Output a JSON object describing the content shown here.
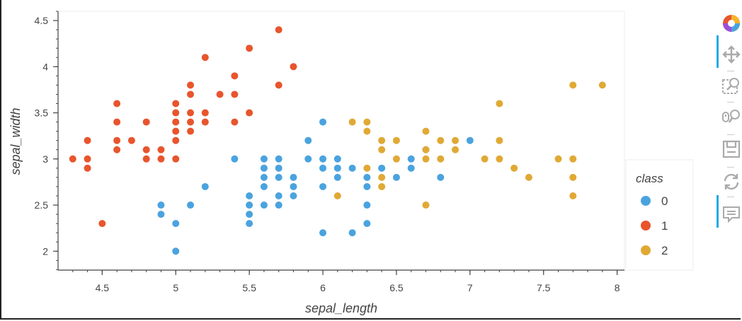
{
  "chart_data": {
    "type": "scatter",
    "title": "",
    "xlabel": "sepal_length",
    "ylabel": "sepal_width",
    "xlim": [
      4.2,
      8.05
    ],
    "ylim": [
      1.78,
      4.6
    ],
    "x_ticks": [
      "4.5",
      "5",
      "5.5",
      "6",
      "6.5",
      "7",
      "7.5",
      "8"
    ],
    "y_ticks": [
      "2",
      "2.5",
      "3",
      "3.5",
      "4",
      "4.5"
    ],
    "x_tick_values": [
      4.5,
      5,
      5.5,
      6,
      6.5,
      7,
      7.5,
      8
    ],
    "y_tick_values": [
      2,
      2.5,
      3,
      3.5,
      4,
      4.5
    ],
    "grid": false,
    "legend": {
      "title": "class",
      "placement": "right"
    },
    "series": [
      {
        "name": "0",
        "color": "#4aa3df",
        "points": [
          [
            4.9,
            2.5
          ],
          [
            4.9,
            2.4
          ],
          [
            5.0,
            2.3
          ],
          [
            5.0,
            2.0
          ],
          [
            5.1,
            2.5
          ],
          [
            5.2,
            2.7
          ],
          [
            5.4,
            3.0
          ],
          [
            5.5,
            2.6
          ],
          [
            5.5,
            2.5
          ],
          [
            5.5,
            2.4
          ],
          [
            5.5,
            2.3
          ],
          [
            5.6,
            3.0
          ],
          [
            5.6,
            2.9
          ],
          [
            5.6,
            2.8
          ],
          [
            5.6,
            2.7
          ],
          [
            5.6,
            2.5
          ],
          [
            5.7,
            3.0
          ],
          [
            5.7,
            2.9
          ],
          [
            5.7,
            2.8
          ],
          [
            5.7,
            2.6
          ],
          [
            5.7,
            2.5
          ],
          [
            5.8,
            2.8
          ],
          [
            5.8,
            2.7
          ],
          [
            5.8,
            2.6
          ],
          [
            5.9,
            3.2
          ],
          [
            5.9,
            3.0
          ],
          [
            6.0,
            3.4
          ],
          [
            6.0,
            3.0
          ],
          [
            6.0,
            2.9
          ],
          [
            6.0,
            2.7
          ],
          [
            6.0,
            2.2
          ],
          [
            6.1,
            3.0
          ],
          [
            6.1,
            2.9
          ],
          [
            6.1,
            2.8
          ],
          [
            6.2,
            2.9
          ],
          [
            6.2,
            2.2
          ],
          [
            6.3,
            2.8
          ],
          [
            6.3,
            2.7
          ],
          [
            6.3,
            2.5
          ],
          [
            6.3,
            2.3
          ],
          [
            6.4,
            2.9
          ],
          [
            6.5,
            2.8
          ],
          [
            6.6,
            3.0
          ],
          [
            6.6,
            2.9
          ],
          [
            6.7,
            3.1
          ],
          [
            6.8,
            2.8
          ],
          [
            7.0,
            3.2
          ]
        ]
      },
      {
        "name": "1",
        "color": "#e8552d",
        "points": [
          [
            4.3,
            3.0
          ],
          [
            4.4,
            3.2
          ],
          [
            4.4,
            3.0
          ],
          [
            4.4,
            2.9
          ],
          [
            4.5,
            2.3
          ],
          [
            4.6,
            3.6
          ],
          [
            4.6,
            3.4
          ],
          [
            4.6,
            3.2
          ],
          [
            4.6,
            3.1
          ],
          [
            4.7,
            3.2
          ],
          [
            4.8,
            3.4
          ],
          [
            4.8,
            3.1
          ],
          [
            4.8,
            3.0
          ],
          [
            4.9,
            3.1
          ],
          [
            4.9,
            3.0
          ],
          [
            5.0,
            3.6
          ],
          [
            5.0,
            3.5
          ],
          [
            5.0,
            3.4
          ],
          [
            5.0,
            3.3
          ],
          [
            5.0,
            3.2
          ],
          [
            5.0,
            3.0
          ],
          [
            5.1,
            3.8
          ],
          [
            5.1,
            3.7
          ],
          [
            5.1,
            3.5
          ],
          [
            5.1,
            3.4
          ],
          [
            5.1,
            3.3
          ],
          [
            5.2,
            4.1
          ],
          [
            5.2,
            3.5
          ],
          [
            5.2,
            3.4
          ],
          [
            5.3,
            3.7
          ],
          [
            5.4,
            3.9
          ],
          [
            5.4,
            3.7
          ],
          [
            5.4,
            3.4
          ],
          [
            5.5,
            4.2
          ],
          [
            5.5,
            3.5
          ],
          [
            5.7,
            4.4
          ],
          [
            5.7,
            3.8
          ],
          [
            5.8,
            4.0
          ]
        ]
      },
      {
        "name": "2",
        "color": "#e0a935",
        "points": [
          [
            6.1,
            2.6
          ],
          [
            6.2,
            3.4
          ],
          [
            6.3,
            3.4
          ],
          [
            6.3,
            3.3
          ],
          [
            6.3,
            2.9
          ],
          [
            6.4,
            3.2
          ],
          [
            6.4,
            3.1
          ],
          [
            6.4,
            2.8
          ],
          [
            6.4,
            2.7
          ],
          [
            6.5,
            3.2
          ],
          [
            6.5,
            3.0
          ],
          [
            6.7,
            3.3
          ],
          [
            6.7,
            3.1
          ],
          [
            6.7,
            3.0
          ],
          [
            6.7,
            2.5
          ],
          [
            6.8,
            3.2
          ],
          [
            6.8,
            3.0
          ],
          [
            6.9,
            3.2
          ],
          [
            6.9,
            3.1
          ],
          [
            7.1,
            3.0
          ],
          [
            7.2,
            3.6
          ],
          [
            7.2,
            3.2
          ],
          [
            7.2,
            3.0
          ],
          [
            7.3,
            2.9
          ],
          [
            7.4,
            2.8
          ],
          [
            7.6,
            3.0
          ],
          [
            7.7,
            3.8
          ],
          [
            7.7,
            3.0
          ],
          [
            7.7,
            2.8
          ],
          [
            7.7,
            2.6
          ],
          [
            7.9,
            3.8
          ]
        ]
      }
    ]
  },
  "toolbar": {
    "tools": [
      {
        "icon": "bokeh-logo-icon",
        "label": ""
      },
      {
        "icon": "pan-icon",
        "label": ""
      },
      {
        "icon": "box-zoom-icon",
        "label": ""
      },
      {
        "icon": "wheel-zoom-icon",
        "label": ""
      },
      {
        "icon": "save-icon",
        "label": ""
      },
      {
        "icon": "reset-icon",
        "label": ""
      },
      {
        "icon": "hover-icon",
        "label": ""
      }
    ]
  }
}
